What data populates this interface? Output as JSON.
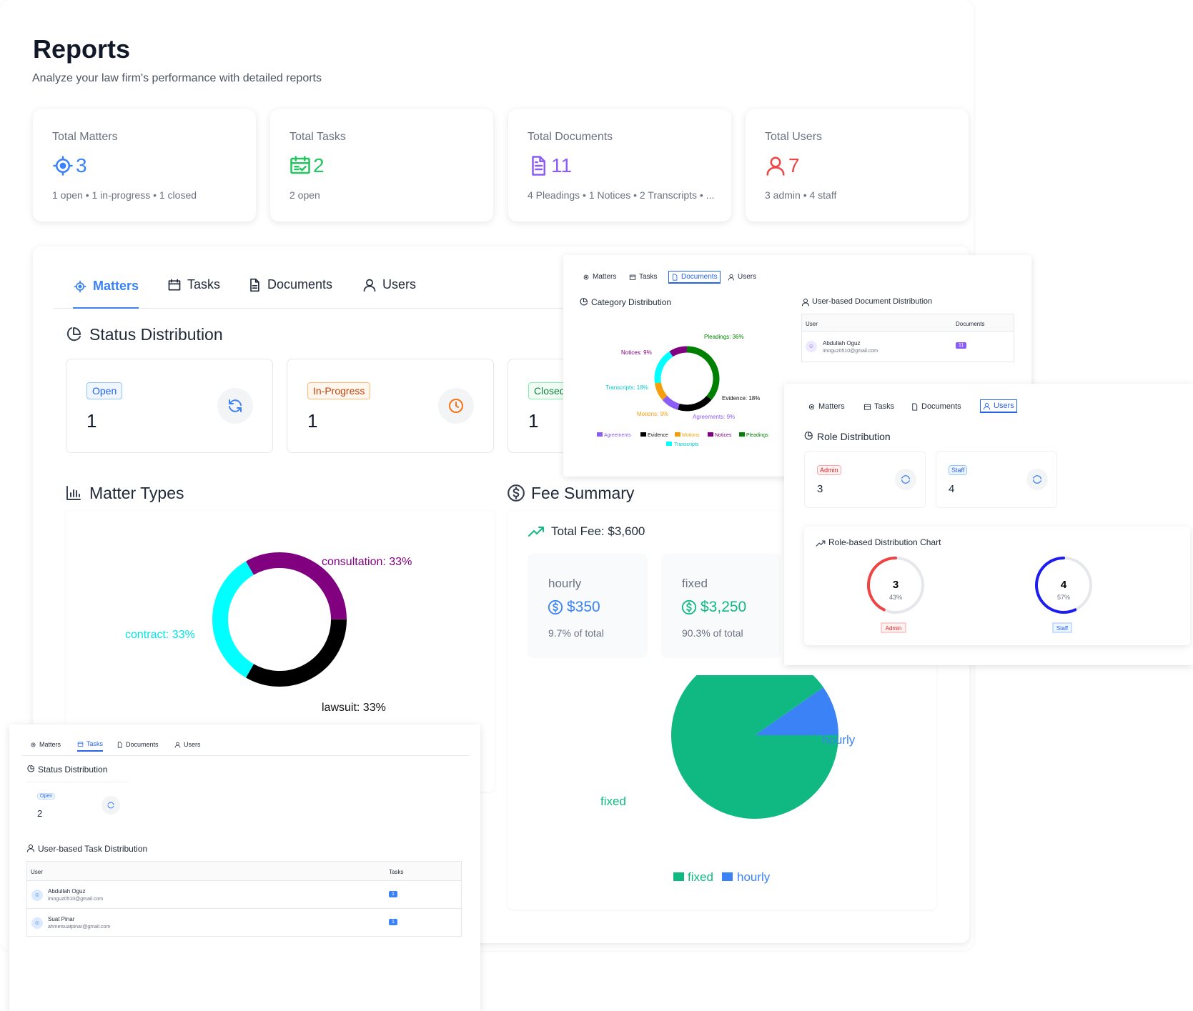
{
  "page": {
    "title": "Reports",
    "subtitle": "Analyze your law firm's performance with detailed reports"
  },
  "colors": {
    "blue": "#3b82f6",
    "green": "#10b981",
    "purple": "#8b5cf6",
    "red": "#ef4444",
    "orange": "#f97316",
    "cyan": "#00ffff",
    "magenta": "#800080"
  },
  "stats": [
    {
      "label": "Total Matters",
      "value": "3",
      "detail": "1 open • 1 in-progress • 1 closed",
      "icon": "target-icon"
    },
    {
      "label": "Total Tasks",
      "value": "2",
      "detail": "2 open",
      "icon": "calendar-check-icon"
    },
    {
      "label": "Total Documents",
      "value": "11",
      "detail": "4 Pleadings • 1 Notices • 2 Transcripts • ...",
      "icon": "document-icon"
    },
    {
      "label": "Total Users",
      "value": "7",
      "detail": "3 admin • 4 staff",
      "icon": "user-icon"
    }
  ],
  "tabs": [
    "Matters",
    "Tasks",
    "Documents",
    "Users"
  ],
  "matters": {
    "status_title": "Status Distribution",
    "statuses": [
      {
        "label": "Open",
        "value": "1"
      },
      {
        "label": "In-Progress",
        "value": "1"
      },
      {
        "label": "Closed",
        "value": "1"
      }
    ],
    "types_title": "Matter Types",
    "fee_title": "Fee Summary",
    "total_fee": "Total Fee: $3,600",
    "fees": [
      {
        "label": "hourly",
        "amount": "$350",
        "pct": "9.7% of total"
      },
      {
        "label": "fixed",
        "amount": "$3,250",
        "pct": "90.3% of total"
      }
    ]
  },
  "documents_panel": {
    "category_title": "Category Distribution",
    "user_title": "User-based Document Distribution",
    "table_headers": [
      "User",
      "Documents"
    ],
    "rows": [
      {
        "name": "Abdullah Oguz",
        "email": "imoguz0510@gmail.com",
        "count": "11"
      }
    ],
    "legend": [
      "Agreements",
      "Evidence",
      "Motions",
      "Notices",
      "Pleadings",
      "Transcripts"
    ]
  },
  "users_panel": {
    "role_title": "Role Distribution",
    "roles": [
      {
        "label": "Admin",
        "value": "3"
      },
      {
        "label": "Staff",
        "value": "4"
      }
    ],
    "chart_title": "Role-based Distribution Chart",
    "gauges": [
      {
        "value": "3",
        "pct": "43%",
        "label": "Admin",
        "fraction": 0.43
      },
      {
        "value": "4",
        "pct": "57%",
        "label": "Staff",
        "fraction": 0.57
      }
    ]
  },
  "tasks_panel": {
    "status_title": "Status Distribution",
    "status": {
      "label": "Open",
      "value": "2"
    },
    "user_title": "User-based Task Distribution",
    "table_headers": [
      "User",
      "Tasks"
    ],
    "rows": [
      {
        "name": "Abdullah Oguz",
        "email": "imoguz0510@gmail.com",
        "count": "1"
      },
      {
        "name": "Suat Pinar",
        "email": "ahmetsuatpinar@gmail.com",
        "count": "1"
      }
    ]
  },
  "chart_data": [
    {
      "type": "pie",
      "title": "Matter Types",
      "categories": [
        "consultation",
        "lawsuit",
        "contract"
      ],
      "values": [
        33,
        33,
        33
      ],
      "labels": [
        "consultation: 33%",
        "lawsuit: 33%",
        "contract: 33%"
      ],
      "colors": [
        "#800080",
        "#000000",
        "#00ffff"
      ],
      "donut": true
    },
    {
      "type": "pie",
      "title": "Fee Summary",
      "categories": [
        "fixed",
        "hourly"
      ],
      "values": [
        3250,
        350
      ],
      "colors": [
        "#10b981",
        "#3b82f6"
      ],
      "legend": [
        "fixed",
        "hourly"
      ]
    },
    {
      "type": "pie",
      "title": "Category Distribution",
      "categories": [
        "Pleadings",
        "Evidence",
        "Agreements",
        "Motions",
        "Transcripts",
        "Notices"
      ],
      "values": [
        36,
        18,
        9,
        9,
        18,
        9
      ],
      "labels": [
        "Pleadings: 36%",
        "Evidence: 18%",
        "Agreements: 9%",
        "Motions: 9%",
        "Transcripts: 18%",
        "Notices: 9%"
      ],
      "colors": [
        "#008000",
        "#000000",
        "#8b5cf6",
        "#f59e0b",
        "#00ffff",
        "#800080"
      ],
      "donut": true
    }
  ]
}
